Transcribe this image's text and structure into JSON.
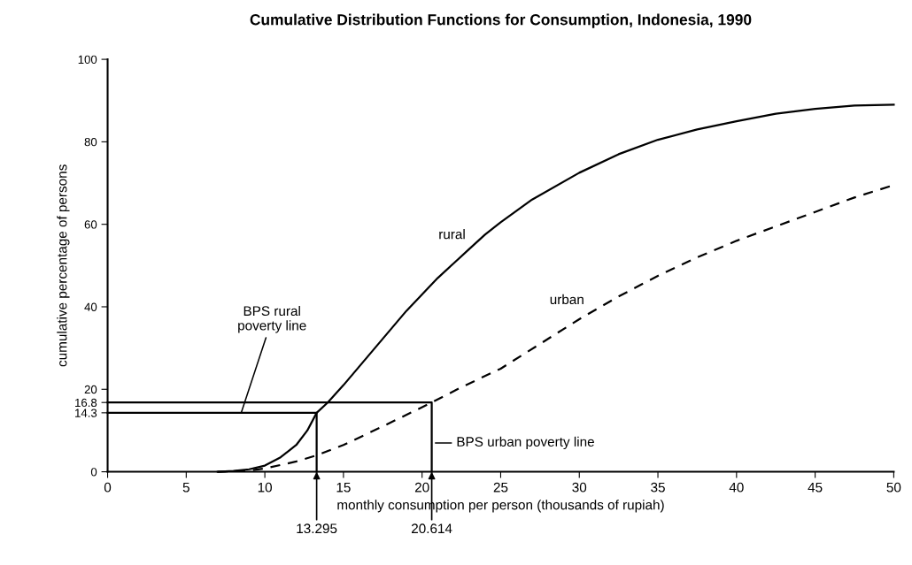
{
  "chart_data": {
    "type": "line",
    "title": "Cumulative Distribution Functions for Consumption, Indonesia, 1990",
    "xlabel": "monthly consumption per person (thousands of rupiah)",
    "ylabel": "cumulative percentage of persons",
    "xlim": [
      0,
      50
    ],
    "xticks": [
      0,
      5,
      10,
      15,
      20,
      25,
      30,
      35,
      40,
      45,
      50
    ],
    "ylim": [
      0,
      100
    ],
    "yticks": [
      0,
      20,
      40,
      60,
      80,
      100,
      {
        "value": 16.8,
        "label": "16.8"
      },
      {
        "value": 14.3,
        "label": "14.3"
      }
    ],
    "grid": false,
    "legend": false,
    "marker": "none",
    "series": [
      {
        "name": "rural",
        "color": "#000000",
        "line_style": "solid",
        "x": [
          7,
          8,
          9,
          10,
          11,
          12,
          12.7,
          13.295,
          14,
          15,
          16,
          17,
          18,
          19,
          20,
          21,
          22,
          23,
          24,
          25,
          27,
          30,
          32.5,
          35,
          37.5,
          40,
          42.5,
          45,
          47.5,
          50
        ],
        "values": [
          0,
          0.2,
          0.6,
          1.5,
          3.5,
          6.5,
          10,
          14.3,
          16.8,
          21,
          25.5,
          30,
          34.5,
          39,
          43,
          47,
          50.5,
          54,
          57.5,
          60.5,
          66,
          72.5,
          77,
          80.5,
          83,
          85,
          86.8,
          88,
          88.8,
          89
        ]
      },
      {
        "name": "urban",
        "color": "#000000",
        "line_style": "dashed",
        "x": [
          7,
          9,
          10,
          12,
          13.295,
          15,
          17.5,
          20.614,
          22.5,
          25,
          27.5,
          30,
          32.5,
          35,
          37.5,
          40,
          42.5,
          45,
          47.5,
          50
        ],
        "values": [
          0,
          0.3,
          0.8,
          2.5,
          4,
          6.5,
          11,
          16.8,
          20.5,
          25,
          31,
          37,
          42.5,
          47.5,
          52,
          56,
          59.5,
          63,
          66.5,
          69.5
        ]
      },
      {
        "color": "#000000",
        "line_style": "solid",
        "x": [
          0,
          13.295,
          13.295
        ],
        "values": [
          14.3,
          14.3,
          0
        ]
      },
      {
        "color": "#000000",
        "line_style": "solid",
        "x": [
          0,
          20.614,
          20.614
        ],
        "values": [
          16.8,
          16.8,
          0
        ]
      }
    ],
    "annotations": [
      {
        "text": "BPS rural\npoverty line",
        "x": 8.5,
        "y": 14.3
      },
      {
        "text": "BPS urban poverty line",
        "x": 20.614,
        "y": 7
      },
      {
        "text": "13.295",
        "x": 13.295,
        "y": 0
      },
      {
        "text": "20.614",
        "x": 20.614,
        "y": 0
      }
    ]
  }
}
